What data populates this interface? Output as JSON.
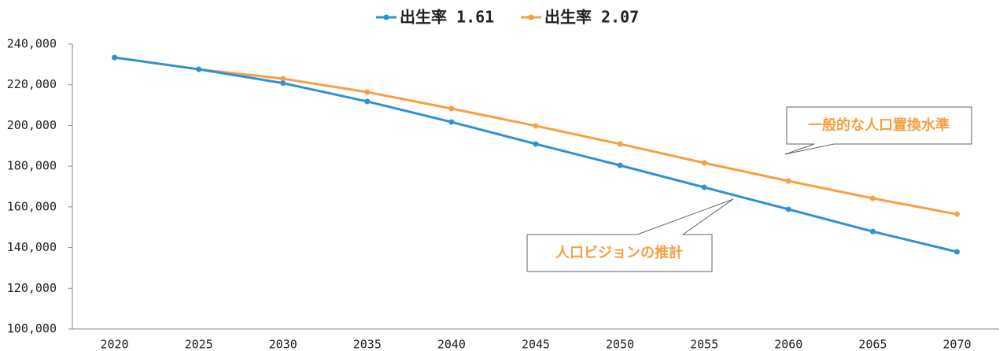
{
  "chart_data": {
    "type": "line",
    "categories": [
      "2020",
      "2025",
      "2030",
      "2035",
      "2040",
      "2045",
      "2050",
      "2055",
      "2060",
      "2065",
      "2070"
    ],
    "series": [
      {
        "name": "出生率 1.61",
        "color": "#2f91d0",
        "values": [
          233400,
          227600,
          220800,
          211800,
          201700,
          190900,
          180400,
          169600,
          158800,
          147900,
          137900
        ]
      },
      {
        "name": "出生率 2.07",
        "color": "#f4a044",
        "values": [
          233400,
          227600,
          223000,
          216400,
          208300,
          199800,
          190900,
          181600,
          172700,
          164200,
          156400
        ]
      }
    ],
    "ylim": [
      100000,
      240000
    ],
    "yticks": [
      {
        "value": 100000,
        "label": "100,000"
      },
      {
        "value": 120000,
        "label": "120,000"
      },
      {
        "value": 140000,
        "label": "140,000"
      },
      {
        "value": 160000,
        "label": "160,000"
      },
      {
        "value": 180000,
        "label": "180,000"
      },
      {
        "value": 200000,
        "label": "200,000"
      },
      {
        "value": 220000,
        "label": "220,000"
      },
      {
        "value": 240000,
        "label": "240,000"
      }
    ],
    "grid": false,
    "legend": "top",
    "annotations": [
      "一般的な人口置換水準",
      "人口ビジョンの推計"
    ]
  }
}
